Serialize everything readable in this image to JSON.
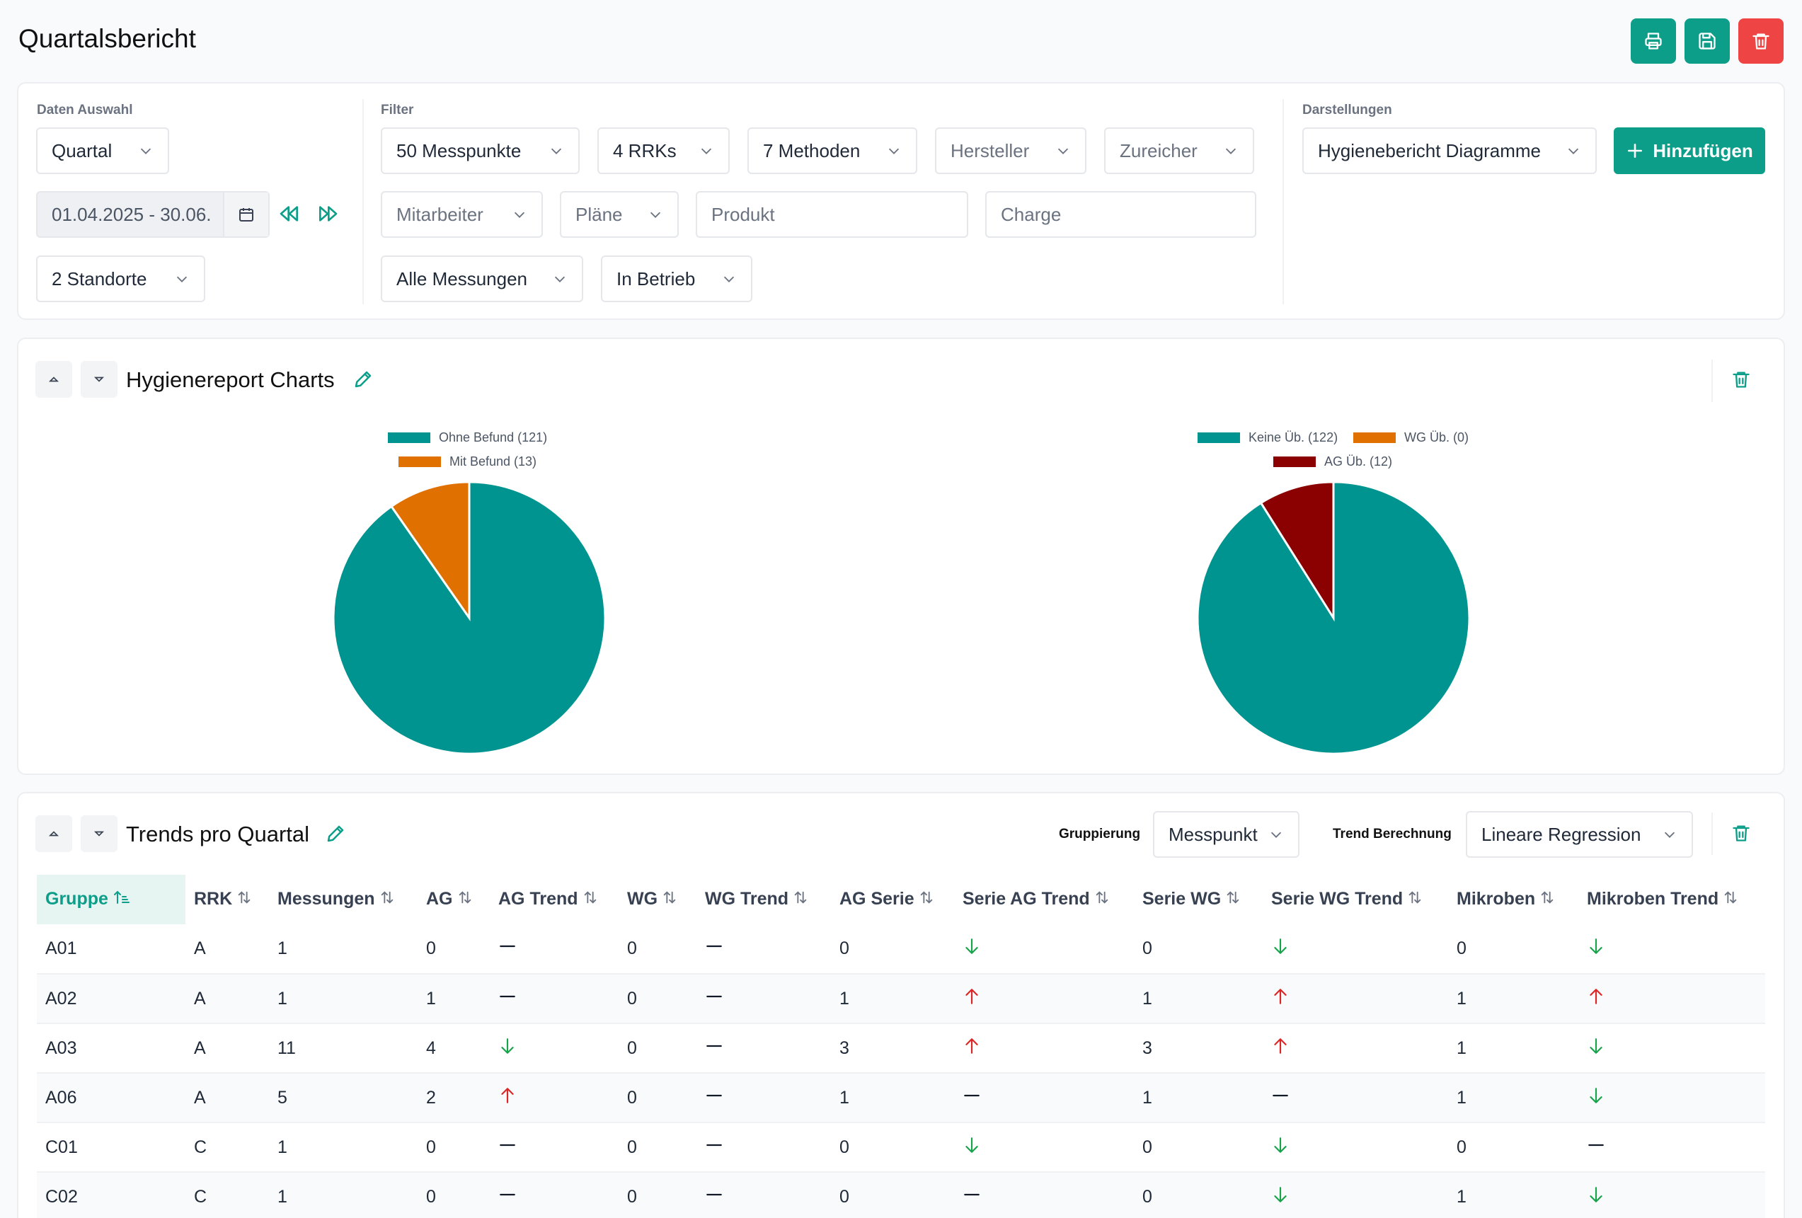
{
  "page": {
    "title": "Quartalsbericht"
  },
  "colors": {
    "primary": "#0d9e8a",
    "danger": "#ef4444",
    "teal_chart": "#009490",
    "orange_chart": "#e07000",
    "darkred_chart": "#8b0000",
    "arrow_down": "#16a34a",
    "arrow_up": "#dc2626"
  },
  "toolbar": {
    "print_icon": "printer-icon",
    "save_icon": "save-icon",
    "delete_icon": "trash-icon"
  },
  "filters": {
    "daten_auswahl_label": "Daten Auswahl",
    "filter_label": "Filter",
    "darstellungen_label": "Darstellungen",
    "period_type": "Quartal",
    "date_range": "01.04.2025 - 30.06.",
    "locations": "2 Standorte",
    "messpunkte": "50 Messpunkte",
    "rrks": "4 RRKs",
    "methoden": "7 Methoden",
    "hersteller": "Hersteller",
    "zureicher": "Zureicher",
    "mitarbeiter": "Mitarbeiter",
    "plaene": "Pläne",
    "produkt_placeholder": "Produkt",
    "charge_placeholder": "Charge",
    "messungen": "Alle Messungen",
    "status": "In Betrieb",
    "darstellung": "Hygienebericht Diagramme",
    "add_button": "Hinzufügen"
  },
  "charts_card": {
    "title": "Hygienereport Charts"
  },
  "chart_data": [
    {
      "type": "pie",
      "labels": [
        "Ohne Befund (121)",
        "Mit Befund (13)"
      ],
      "values": [
        121,
        13
      ],
      "colors": [
        "#009490",
        "#e07000"
      ],
      "legend": "top"
    },
    {
      "type": "pie",
      "labels": [
        "Keine Üb. (122)",
        "WG Üb. (0)",
        "AG Üb. (12)"
      ],
      "values": [
        122,
        0,
        12
      ],
      "colors": [
        "#009490",
        "#e07000",
        "#8b0000"
      ],
      "legend": "top"
    }
  ],
  "trends_card": {
    "title": "Trends pro Quartal",
    "gruppierung_label": "Gruppierung",
    "gruppierung_value": "Messpunkt",
    "trend_label": "Trend Berechnung",
    "trend_value": "Lineare Regression",
    "columns": [
      "Gruppe",
      "RRK",
      "Messungen",
      "AG",
      "AG Trend",
      "WG",
      "WG Trend",
      "AG Serie",
      "Serie AG Trend",
      "Serie WG",
      "Serie WG Trend",
      "Mikroben",
      "Mikroben Trend"
    ],
    "rows": [
      [
        "A01",
        "A",
        "1",
        "0",
        "flat",
        "0",
        "flat",
        "0",
        "down",
        "0",
        "down",
        "0",
        "down"
      ],
      [
        "A02",
        "A",
        "1",
        "1",
        "flat",
        "0",
        "flat",
        "1",
        "up",
        "1",
        "up",
        "1",
        "up"
      ],
      [
        "A03",
        "A",
        "11",
        "4",
        "down",
        "0",
        "flat",
        "3",
        "up",
        "3",
        "up",
        "1",
        "down"
      ],
      [
        "A06",
        "A",
        "5",
        "2",
        "up",
        "0",
        "flat",
        "1",
        "flat",
        "1",
        "flat",
        "1",
        "down"
      ],
      [
        "C01",
        "C",
        "1",
        "0",
        "flat",
        "0",
        "flat",
        "0",
        "down",
        "0",
        "down",
        "0",
        "flat"
      ],
      [
        "C02",
        "C",
        "1",
        "0",
        "flat",
        "0",
        "flat",
        "0",
        "flat",
        "0",
        "down",
        "1",
        "down"
      ]
    ]
  }
}
